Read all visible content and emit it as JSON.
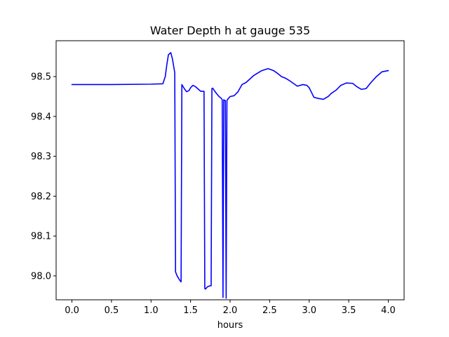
{
  "chart_data": {
    "type": "line",
    "title": "Water Depth h at gauge 535",
    "xlabel": "hours",
    "ylabel": "",
    "xlim": [
      -0.2,
      4.2
    ],
    "ylim": [
      97.94,
      98.59
    ],
    "xticks": [
      0.0,
      0.5,
      1.0,
      1.5,
      2.0,
      2.5,
      3.0,
      3.5,
      4.0
    ],
    "xtick_labels": [
      "0.0",
      "0.5",
      "1.0",
      "1.5",
      "2.0",
      "2.5",
      "3.0",
      "3.5",
      "4.0"
    ],
    "yticks": [
      98.0,
      98.1,
      98.2,
      98.3,
      98.4,
      98.5
    ],
    "ytick_labels": [
      "98.0",
      "98.1",
      "98.2",
      "98.3",
      "98.4",
      "98.5"
    ],
    "grid": false,
    "series": [
      {
        "name": "",
        "color": "#0000ff",
        "x": [
          0.0,
          0.5,
          1.0,
          1.15,
          1.18,
          1.2,
          1.22,
          1.25,
          1.27,
          1.3,
          1.31,
          1.33,
          1.36,
          1.38,
          1.39,
          1.42,
          1.45,
          1.48,
          1.5,
          1.53,
          1.56,
          1.6,
          1.63,
          1.67,
          1.68,
          1.69,
          1.71,
          1.74,
          1.76,
          1.77,
          1.78,
          1.8,
          1.83,
          1.86,
          1.89,
          1.9,
          1.91,
          1.92,
          1.93,
          1.94,
          1.95,
          1.96,
          1.97,
          2.0,
          2.05,
          2.1,
          2.15,
          2.2,
          2.3,
          2.4,
          2.48,
          2.55,
          2.6,
          2.65,
          2.7,
          2.75,
          2.8,
          2.85,
          2.92,
          2.97,
          3.0,
          3.03,
          3.06,
          3.12,
          3.18,
          3.24,
          3.28,
          3.34,
          3.4,
          3.47,
          3.55,
          3.6,
          3.66,
          3.72,
          3.78,
          3.85,
          3.92,
          4.0
        ],
        "y": [
          98.48,
          98.48,
          98.481,
          98.482,
          98.5,
          98.53,
          98.555,
          98.56,
          98.545,
          98.51,
          98.01,
          98.0,
          97.99,
          97.985,
          98.48,
          98.47,
          98.462,
          98.465,
          98.472,
          98.478,
          98.475,
          98.468,
          98.463,
          98.463,
          97.968,
          97.967,
          97.972,
          97.975,
          97.975,
          98.47,
          98.471,
          98.465,
          98.457,
          98.45,
          98.445,
          98.442,
          97.946,
          98.442,
          98.44,
          98.44,
          97.944,
          98.44,
          98.443,
          98.45,
          98.452,
          98.462,
          98.48,
          98.485,
          98.503,
          98.515,
          98.52,
          98.515,
          98.508,
          98.5,
          98.496,
          98.49,
          98.483,
          98.476,
          98.48,
          98.478,
          98.472,
          98.46,
          98.448,
          98.445,
          98.443,
          98.45,
          98.458,
          98.466,
          98.478,
          98.484,
          98.483,
          98.475,
          98.468,
          98.47,
          98.485,
          98.5,
          98.512,
          98.515
        ]
      }
    ]
  }
}
